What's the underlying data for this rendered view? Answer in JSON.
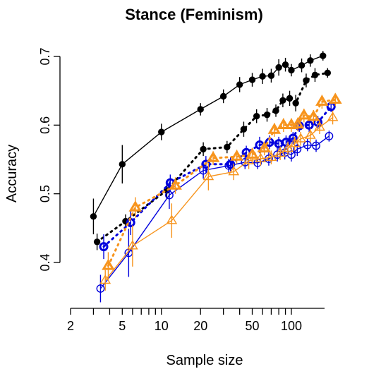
{
  "chart_data": {
    "type": "line",
    "title": "Stance (Feminism)",
    "xlabel": "Sample size",
    "ylabel": "Accuracy",
    "x_scale": "log",
    "xlim": [
      2,
      180
    ],
    "ylim": [
      0.4,
      0.7
    ],
    "x_ticks": [
      2,
      5,
      10,
      20,
      50,
      100
    ],
    "y_ticks": [
      0.4,
      0.5,
      0.6,
      0.7
    ],
    "grid": false,
    "legend": "none",
    "series": [
      {
        "color": "#000000",
        "line": "solid",
        "marker": "filled-circle",
        "x": [
          3,
          5,
          10,
          20,
          30,
          40,
          50,
          60,
          70,
          80,
          90,
          100,
          120,
          140,
          175
        ],
        "y": [
          0.467,
          0.543,
          0.59,
          0.623,
          0.642,
          0.659,
          0.666,
          0.671,
          0.672,
          0.684,
          0.688,
          0.68,
          0.687,
          0.694,
          0.701
        ],
        "err": [
          0.026,
          0.028,
          0.012,
          0.009,
          0.01,
          0.011,
          0.01,
          0.011,
          0.01,
          0.012,
          0.01,
          0.009,
          0.01,
          0.009,
          0.007
        ]
      },
      {
        "color": "#000000",
        "line": "dotted",
        "marker": "filled-circle",
        "x": [
          3.2,
          5.3,
          11,
          21,
          32,
          43,
          54,
          65,
          76,
          86,
          97,
          108,
          130,
          152,
          190
        ],
        "y": [
          0.43,
          0.46,
          0.505,
          0.565,
          0.568,
          0.594,
          0.613,
          0.615,
          0.621,
          0.636,
          0.639,
          0.632,
          0.665,
          0.673,
          0.676
        ],
        "err": [
          0.012,
          0.01,
          0.012,
          0.01,
          0.009,
          0.011,
          0.01,
          0.01,
          0.009,
          0.01,
          0.011,
          0.012,
          0.01,
          0.01,
          0.007
        ]
      },
      {
        "color": "#0000dd",
        "line": "solid",
        "marker": "open-circle",
        "x": [
          3.4,
          5.6,
          11.5,
          21,
          33,
          44,
          55,
          67,
          78,
          89,
          100,
          111,
          133,
          155,
          195
        ],
        "y": [
          0.362,
          0.414,
          0.498,
          0.534,
          0.541,
          0.546,
          0.545,
          0.551,
          0.557,
          0.56,
          0.557,
          0.565,
          0.571,
          0.57,
          0.584
        ],
        "err": [
          0.02,
          0.035,
          0.02,
          0.012,
          0.01,
          0.01,
          0.009,
          0.01,
          0.01,
          0.01,
          0.01,
          0.01,
          0.009,
          0.009,
          0.008
        ]
      },
      {
        "color": "#0000dd",
        "line": "dotted",
        "marker": "open-circle-bold",
        "x": [
          3.6,
          5.8,
          11.7,
          22,
          34,
          45,
          57,
          68,
          80,
          91,
          103,
          115,
          137,
          160,
          202
        ],
        "y": [
          0.423,
          0.458,
          0.516,
          0.543,
          0.543,
          0.56,
          0.571,
          0.575,
          0.573,
          0.575,
          0.581,
          0.599,
          0.6,
          0.604,
          0.627
        ],
        "err": [
          0.018,
          0.018,
          0.012,
          0.012,
          0.01,
          0.01,
          0.012,
          0.01,
          0.01,
          0.01,
          0.009,
          0.009,
          0.01,
          0.009,
          0.008
        ]
      },
      {
        "color": "#f7941d",
        "line": "solid",
        "marker": "open-triangle",
        "x": [
          3.7,
          6,
          12,
          23,
          36,
          47,
          58,
          70,
          82,
          94,
          106,
          118,
          140,
          165,
          208
        ],
        "y": [
          0.374,
          0.424,
          0.461,
          0.525,
          0.532,
          0.548,
          0.551,
          0.553,
          0.559,
          0.566,
          0.573,
          0.58,
          0.585,
          0.597,
          0.611
        ],
        "err": [
          0.015,
          0.03,
          0.025,
          0.02,
          0.012,
          0.012,
          0.01,
          0.01,
          0.01,
          0.01,
          0.01,
          0.01,
          0.01,
          0.01,
          0.01
        ]
      },
      {
        "color": "#f7941d",
        "line": "dotted",
        "marker": "open-triangle-bold",
        "x": [
          3.9,
          6.3,
          12.8,
          25,
          38,
          50,
          62,
          74,
          87,
          100,
          112,
          125,
          148,
          172,
          218
        ],
        "y": [
          0.395,
          0.48,
          0.512,
          0.552,
          0.554,
          0.557,
          0.566,
          0.593,
          0.6,
          0.6,
          0.601,
          0.614,
          0.612,
          0.634,
          0.637
        ],
        "err": [
          0.02,
          0.015,
          0.012,
          0.01,
          0.01,
          0.01,
          0.01,
          0.01,
          0.01,
          0.01,
          0.01,
          0.01,
          0.01,
          0.01,
          0.009
        ]
      }
    ]
  }
}
